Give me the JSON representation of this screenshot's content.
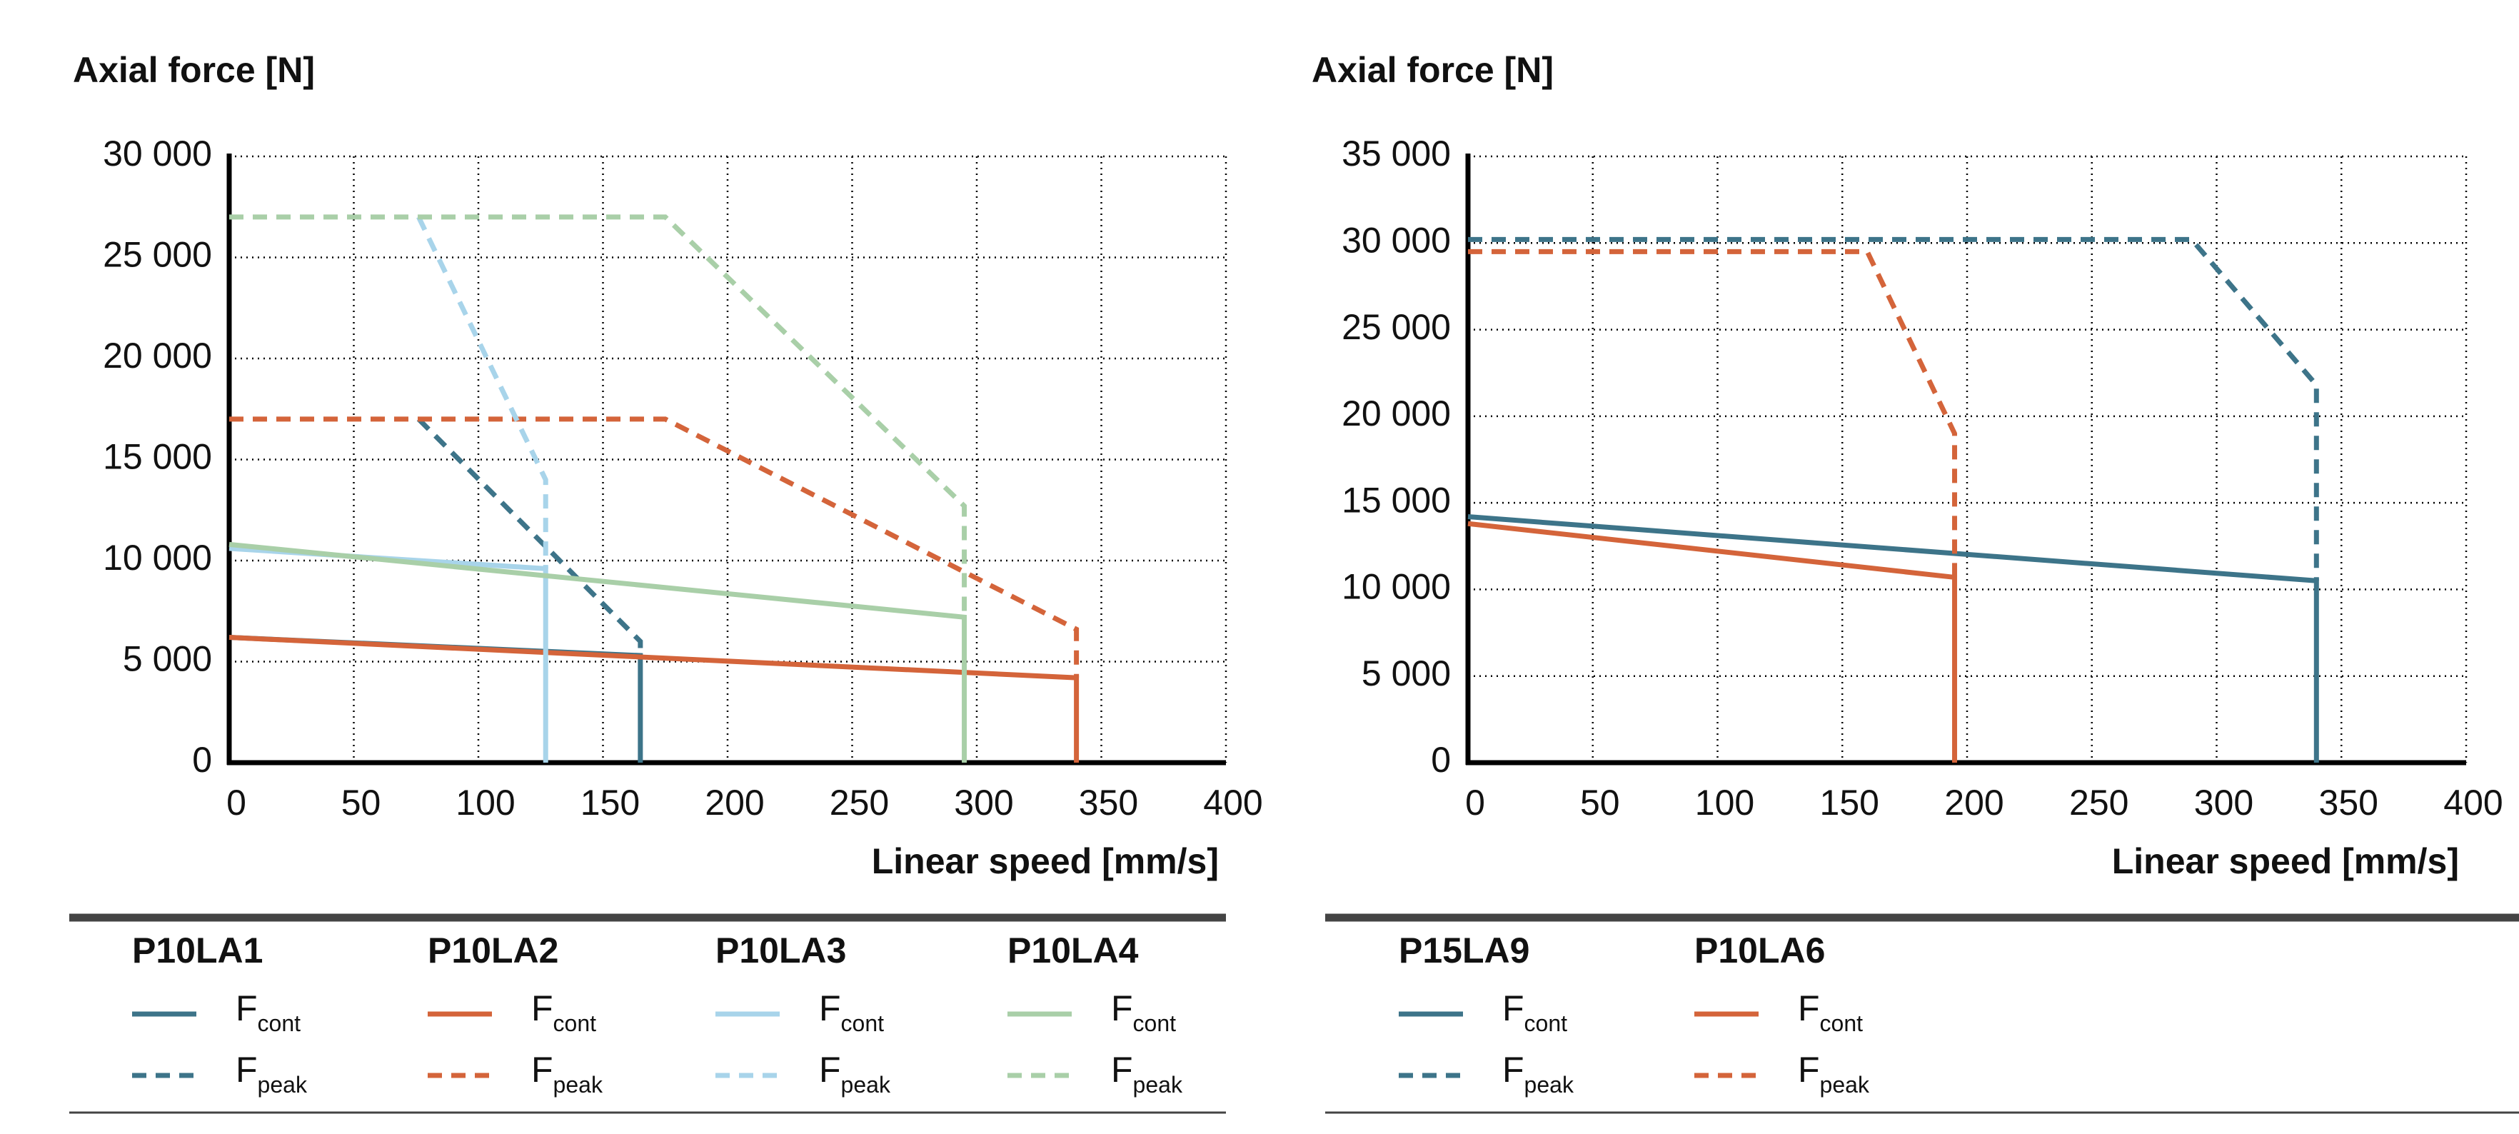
{
  "chart_data": [
    {
      "type": "line",
      "ylabel": "Axial force [N]",
      "xlabel": "Linear speed [mm/s]",
      "xlim": [
        0,
        400
      ],
      "ylim": [
        0,
        30000
      ],
      "grid": true,
      "xticks": [
        0,
        50,
        100,
        150,
        200,
        250,
        300,
        350,
        400
      ],
      "yticks": [
        0,
        {
          "value": 5000,
          "label": "5 000"
        },
        {
          "value": 10000,
          "label": "10 000"
        },
        {
          "value": 15000,
          "label": "15 000"
        },
        {
          "value": 20000,
          "label": "20 000"
        },
        {
          "value": 25000,
          "label": "25 000"
        },
        {
          "value": 30000,
          "label": "30 000"
        }
      ],
      "series": [
        {
          "name": "P10LA1",
          "color": "#3d7489",
          "lines": [
            {
              "label": "F",
              "subscript": "cont",
              "style": "solid",
              "x": [
                0,
                165,
                165
              ],
              "values": [
                6200,
                5300,
                0
              ]
            },
            {
              "label": "F",
              "subscript": "peak",
              "style": "dashed",
              "x": [
                76,
                165,
                165
              ],
              "values": [
                17000,
                6000,
                5300
              ]
            }
          ]
        },
        {
          "name": "P10LA2",
          "color": "#d4643a",
          "lines": [
            {
              "label": "F",
              "subscript": "cont",
              "style": "solid",
              "x": [
                0,
                340,
                340
              ],
              "values": [
                6200,
                4200,
                0
              ]
            },
            {
              "label": "F",
              "subscript": "peak",
              "style": "dashed",
              "x": [
                0,
                175,
                340,
                340
              ],
              "values": [
                17000,
                17000,
                6600,
                4200
              ]
            }
          ]
        },
        {
          "name": "P10LA3",
          "color": "#a8d4ea",
          "lines": [
            {
              "label": "F",
              "subscript": "cont",
              "style": "solid",
              "x": [
                0,
                127,
                127
              ],
              "values": [
                10600,
                9600,
                0
              ]
            },
            {
              "label": "F",
              "subscript": "peak",
              "style": "dashed",
              "x": [
                76,
                127,
                127
              ],
              "values": [
                27000,
                14000,
                9600
              ]
            }
          ]
        },
        {
          "name": "P10LA4",
          "color": "#a9cfa8",
          "lines": [
            {
              "label": "F",
              "subscript": "cont",
              "style": "solid",
              "x": [
                0,
                295,
                295
              ],
              "values": [
                10800,
                7200,
                0
              ]
            },
            {
              "label": "F",
              "subscript": "peak",
              "style": "dashed",
              "x": [
                0,
                175,
                295,
                295
              ],
              "values": [
                27000,
                27000,
                12700,
                7200
              ]
            }
          ]
        }
      ]
    },
    {
      "type": "line",
      "ylabel": "Axial force [N]",
      "xlabel": "Linear speed [mm/s]",
      "xlim": [
        0,
        400
      ],
      "ylim": [
        0,
        35000
      ],
      "grid": true,
      "xticks": [
        0,
        50,
        100,
        150,
        200,
        250,
        300,
        350,
        400
      ],
      "yticks": [
        0,
        {
          "value": 5000,
          "label": "5 000"
        },
        {
          "value": 10000,
          "label": "10 000"
        },
        {
          "value": 15000,
          "label": "15 000"
        },
        {
          "value": 20000,
          "label": "20 000"
        },
        {
          "value": 25000,
          "label": "25 000"
        },
        {
          "value": 30000,
          "label": "30 000"
        },
        {
          "value": 35000,
          "label": "35 000"
        }
      ],
      "series": [
        {
          "name": "P15LA9",
          "color": "#3d7489",
          "lines": [
            {
              "label": "F",
              "subscript": "cont",
              "style": "solid",
              "x": [
                0,
                340,
                340
              ],
              "values": [
                14200,
                10500,
                0
              ]
            },
            {
              "label": "F",
              "subscript": "peak",
              "style": "dashed",
              "x": [
                0,
                290,
                340,
                340
              ],
              "values": [
                30200,
                30200,
                21800,
                10500
              ]
            }
          ]
        },
        {
          "name": "P10LA6",
          "color": "#d4643a",
          "lines": [
            {
              "label": "F",
              "subscript": "cont",
              "style": "solid",
              "x": [
                0,
                195,
                195
              ],
              "values": [
                13800,
                10700,
                0
              ]
            },
            {
              "label": "F",
              "subscript": "peak",
              "style": "dashed",
              "x": [
                0,
                160,
                195,
                195
              ],
              "values": [
                29500,
                29500,
                19000,
                10700
              ]
            }
          ]
        }
      ]
    }
  ]
}
